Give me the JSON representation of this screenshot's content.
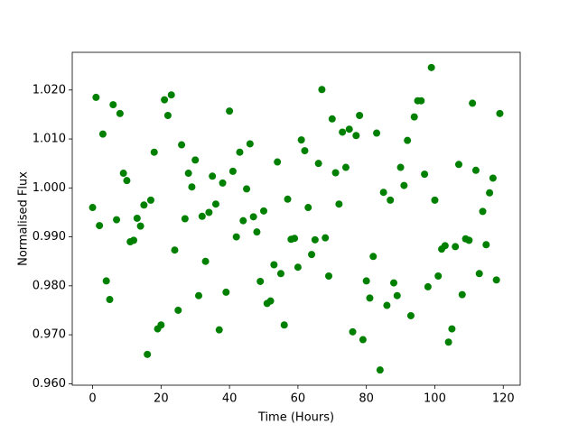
{
  "chart_data": {
    "type": "scatter",
    "x_label": "Time (Hours)",
    "y_label": "Normalised Flux",
    "x": [
      0,
      1,
      2,
      3,
      4,
      5,
      6,
      7,
      8,
      9,
      10,
      11,
      12,
      13,
      14,
      15,
      16,
      17,
      18,
      19,
      20,
      21,
      22,
      23,
      24,
      25,
      26,
      27,
      28,
      29,
      30,
      31,
      32,
      33,
      34,
      35,
      36,
      37,
      38,
      39,
      40,
      41,
      42,
      43,
      44,
      45,
      46,
      47,
      48,
      49,
      50,
      51,
      52,
      53,
      54,
      55,
      56,
      57,
      58,
      59,
      60,
      61,
      62,
      63,
      64,
      65,
      66,
      67,
      68,
      69,
      70,
      71,
      72,
      73,
      74,
      75,
      76,
      77,
      78,
      79,
      80,
      81,
      82,
      83,
      84,
      85,
      86,
      87,
      88,
      89,
      90,
      91,
      92,
      93,
      94,
      95,
      96,
      97,
      98,
      99,
      100,
      101,
      102,
      103,
      104,
      105,
      106,
      107,
      108,
      109,
      110,
      111,
      112,
      113,
      114,
      115,
      116,
      117,
      118,
      119
    ],
    "series": [
      {
        "color": "#008000",
        "values": [
          0.996,
          1.0185,
          0.9923,
          1.011,
          0.981,
          0.9772,
          1.017,
          0.9935,
          1.0152,
          1.003,
          1.0015,
          0.989,
          0.9893,
          0.9938,
          0.9922,
          0.9965,
          0.966,
          0.9975,
          1.0073,
          0.9712,
          0.972,
          1.018,
          1.0148,
          1.019,
          0.9873,
          0.975,
          1.0088,
          0.9937,
          1.003,
          1.0002,
          1.0057,
          0.978,
          0.9942,
          0.985,
          0.995,
          1.0024,
          0.9967,
          0.971,
          1.001,
          0.9787,
          1.0157,
          1.0034,
          0.99,
          1.0073,
          0.9933,
          0.9998,
          1.009,
          0.9941,
          0.991,
          0.9809,
          0.9953,
          0.9764,
          0.9769,
          0.9843,
          1.0053,
          0.9825,
          0.972,
          0.9977,
          0.9895,
          0.9897,
          0.9838,
          1.0098,
          1.0076,
          0.996,
          0.9864,
          0.9894,
          1.005,
          1.0201,
          0.9898,
          0.982,
          1.0141,
          1.0031,
          0.9967,
          1.0114,
          1.0042,
          1.012,
          0.9706,
          1.0107,
          1.0148,
          0.969,
          0.981,
          0.9775,
          0.986,
          1.0112,
          0.9628,
          0.9991,
          0.976,
          0.9975,
          0.9806,
          0.978,
          1.0042,
          1.0005,
          1.0097,
          0.9739,
          1.0145,
          1.0178,
          1.0178,
          1.0028,
          0.9798,
          1.0246,
          0.9975,
          0.982,
          0.9875,
          0.9882,
          0.9685,
          0.9712,
          0.988,
          1.0048,
          0.9782,
          0.9896,
          0.9893,
          1.0173,
          1.0036,
          0.9825,
          0.9952,
          0.9884,
          0.999,
          1.002,
          0.9812,
          1.0152
        ]
      }
    ],
    "xlim": [
      -5.95,
      124.95
    ],
    "xticks": [
      0,
      20,
      40,
      60,
      80,
      100,
      120
    ],
    "ylim": [
      0.9597,
      1.0277
    ],
    "yticks": [
      {
        "value": 0.96,
        "label": "0.960"
      },
      {
        "value": 0.97,
        "label": "0.970"
      },
      {
        "value": 0.98,
        "label": "0.980"
      },
      {
        "value": 0.99,
        "label": "0.990"
      },
      {
        "value": 1.0,
        "label": "1.000"
      },
      {
        "value": 1.01,
        "label": "1.010"
      },
      {
        "value": 1.02,
        "label": "1.020"
      }
    ],
    "grid": false
  }
}
